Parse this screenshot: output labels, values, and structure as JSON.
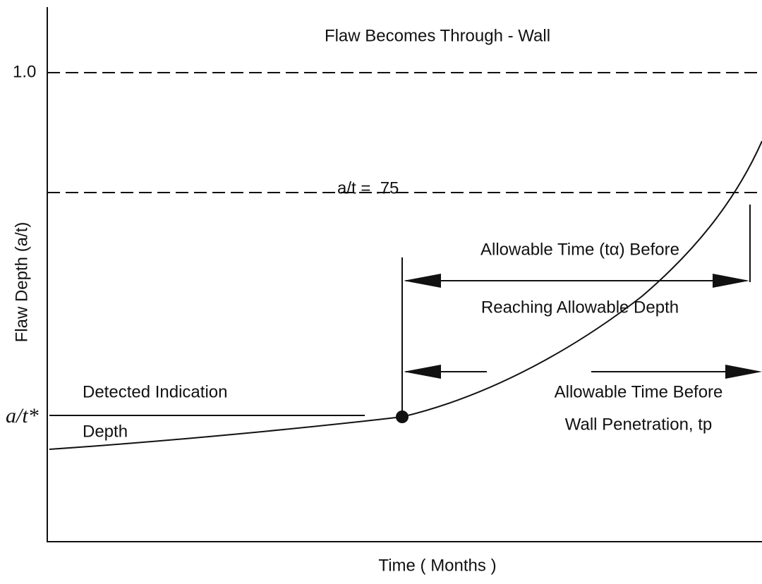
{
  "diagram": {
    "title": "Flaw Becomes Through - Wall",
    "x_axis_label": "Time ( Months )",
    "y_axis_label": "Flaw Depth (a/t)",
    "y_levels": [
      "1.0",
      "a/t*"
    ],
    "allowable_depth": "a/t = .75",
    "detected": [
      "Detected Indication",
      "Depth"
    ],
    "allowable_time": [
      "Allowable Time (tα) Before",
      "Reaching Allowable Depth"
    ],
    "penetration_time": [
      "Allowable Time Before",
      "Wall Penetration, tp"
    ]
  }
}
